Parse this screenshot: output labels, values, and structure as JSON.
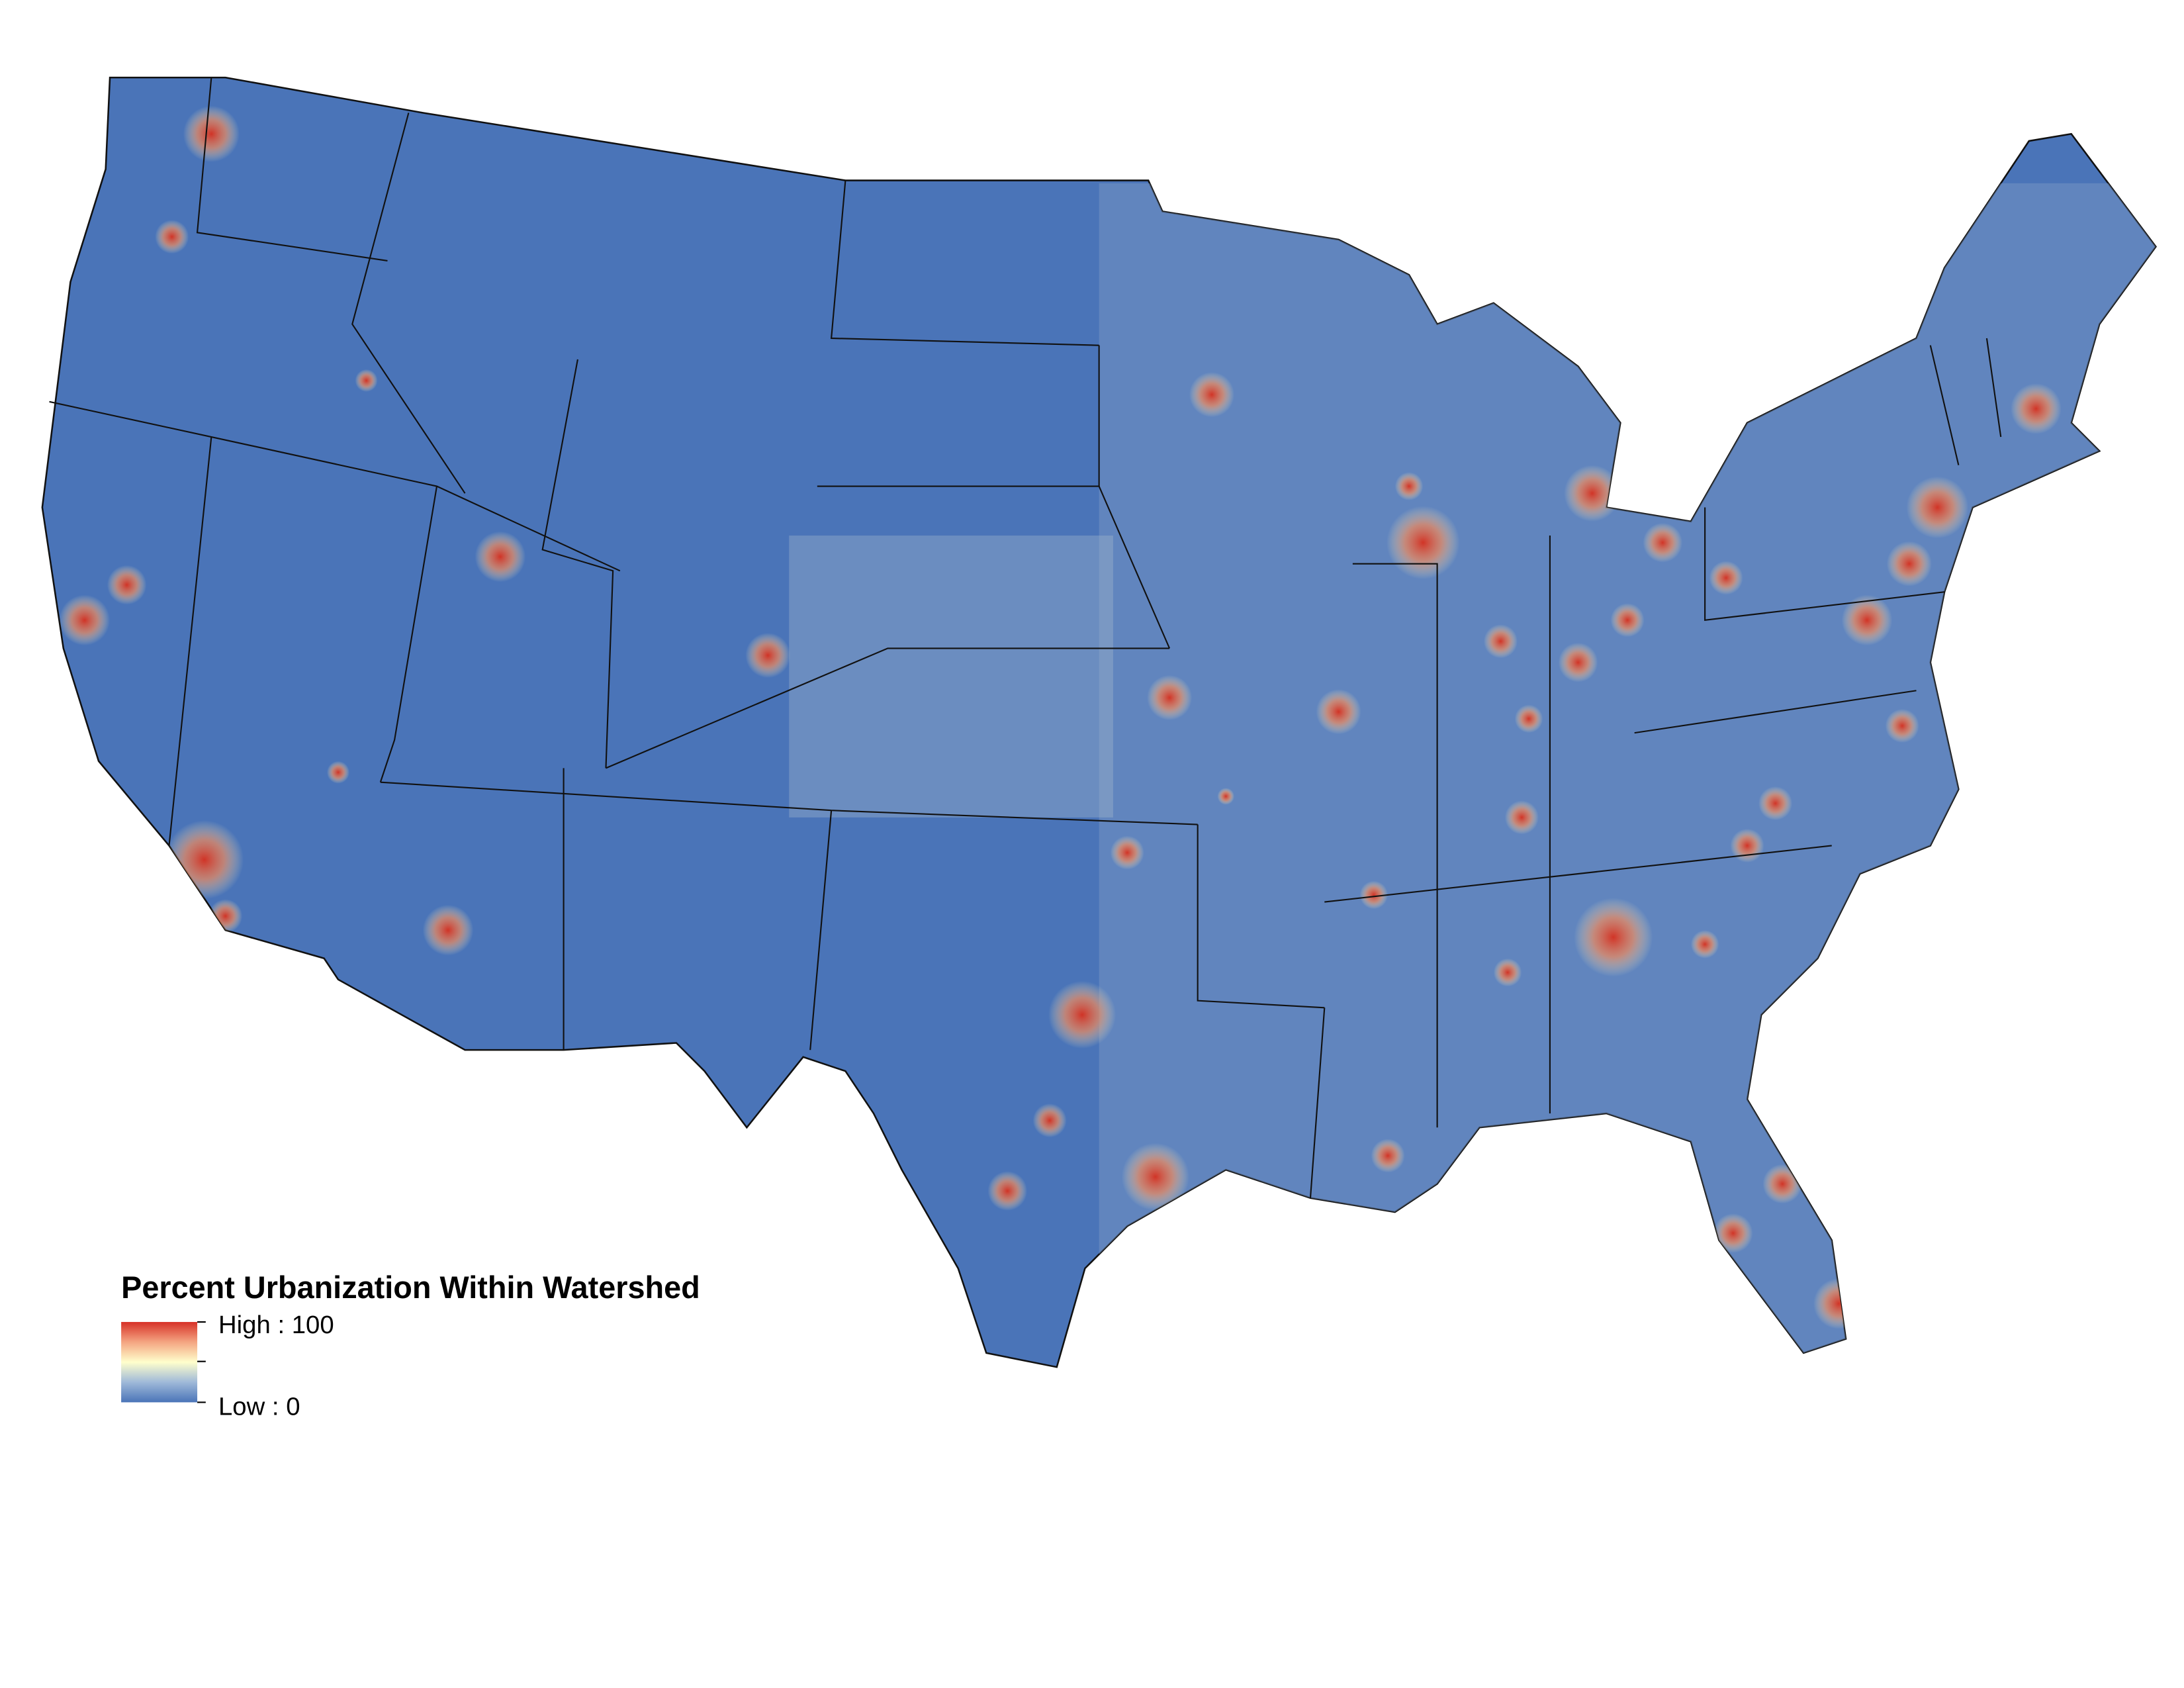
{
  "legend": {
    "title": "Percent Urbanization Within Watershed",
    "high_label": "High : 100",
    "low_label": "Low : 0"
  }
}
